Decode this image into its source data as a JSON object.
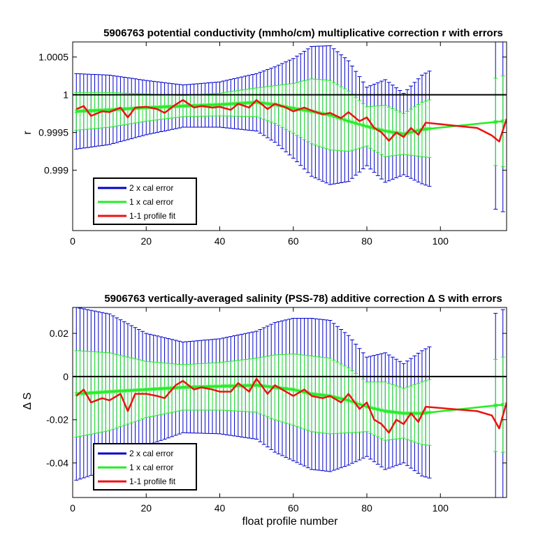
{
  "chart_data": [
    {
      "type": "line",
      "title": "5906763 potential conductivity (mmho/cm) multiplicative correction r with errors",
      "xlabel": "",
      "ylabel": "r",
      "xlim": [
        0,
        118
      ],
      "ylim": [
        0.9982,
        1.0007
      ],
      "xticks": [
        0,
        20,
        40,
        60,
        80,
        100
      ],
      "xtick_labels": [
        "0",
        "20",
        "40",
        "60",
        "80",
        "100"
      ],
      "yticks": [
        0.999,
        0.9995,
        1,
        1.0005
      ],
      "ytick_labels": [
        "0.999",
        "0.9995",
        "1",
        "1.0005"
      ],
      "reference_line": 1,
      "grid": false,
      "legend_position": "bottom-left",
      "legend": [
        "2 x cal error",
        "1 x cal error",
        "1-1 profile fit"
      ],
      "colors": {
        "two_x": "#0000cc",
        "one_x": "#22ee22",
        "fit": "#ee1111",
        "ref": "#000000"
      },
      "series": [
        {
          "name": "1 x cal error",
          "kind": "center_with_errorbars",
          "x": [
            1,
            10,
            20,
            30,
            40,
            50,
            55,
            60,
            65,
            70,
            75,
            80,
            85,
            90,
            95,
            117
          ],
          "y": [
            0.99978,
            0.9998,
            0.99983,
            0.99985,
            0.99987,
            0.9999,
            0.99987,
            0.99982,
            0.99978,
            0.99973,
            0.99965,
            0.99958,
            0.99952,
            0.99948,
            0.99954,
            0.99965
          ],
          "err": [
            0.00025,
            0.00023,
            0.00018,
            0.00014,
            0.00015,
            0.00019,
            0.00025,
            0.00033,
            0.00043,
            0.00046,
            0.0004,
            0.00026,
            0.00034,
            0.00027,
            0.00036,
            0.0006
          ]
        },
        {
          "name": "2 x cal error",
          "kind": "errorbar_envelope",
          "x": [
            1,
            10,
            20,
            30,
            40,
            50,
            55,
            60,
            65,
            70,
            75,
            80,
            85,
            90,
            95,
            117
          ],
          "y": [
            0.99978,
            0.9998,
            0.99983,
            0.99985,
            0.99987,
            0.9999,
            0.99987,
            0.99982,
            0.99978,
            0.99973,
            0.99965,
            0.99958,
            0.99952,
            0.99948,
            0.99954,
            0.99965
          ],
          "err": [
            0.0005,
            0.00046,
            0.00036,
            0.00028,
            0.0003,
            0.00038,
            0.0005,
            0.00066,
            0.00086,
            0.00092,
            0.0008,
            0.00052,
            0.00068,
            0.00054,
            0.00072,
            0.0012
          ]
        },
        {
          "name": "1-1 profile fit",
          "x": [
            1,
            3,
            5,
            8,
            10,
            13,
            15,
            17,
            20,
            23,
            25,
            28,
            30,
            33,
            35,
            38,
            40,
            43,
            45,
            48,
            50,
            53,
            55,
            58,
            60,
            63,
            65,
            68,
            70,
            73,
            75,
            78,
            80,
            82,
            84,
            86,
            88,
            90,
            92,
            94,
            96,
            110,
            114,
            116,
            118
          ],
          "y": [
            0.99981,
            0.99985,
            0.99972,
            0.99978,
            0.99977,
            0.99983,
            0.9997,
            0.99983,
            0.99984,
            0.99981,
            0.99976,
            0.99987,
            0.99993,
            0.99983,
            0.99985,
            0.99983,
            0.99984,
            0.9998,
            0.99988,
            0.99983,
            0.99993,
            0.99981,
            0.99988,
            0.99983,
            0.99978,
            0.99983,
            0.99979,
            0.99974,
            0.99976,
            0.99969,
            0.99977,
            0.99965,
            0.9997,
            0.99956,
            0.9995,
            0.99939,
            0.9995,
            0.99944,
            0.99956,
            0.99947,
            0.99963,
            0.99956,
            0.99946,
            0.99938,
            0.99968
          ]
        }
      ]
    },
    {
      "type": "line",
      "title": "5906763 vertically-averaged salinity (PSS-78) additive correction Δ S with errors",
      "xlabel": "float profile number",
      "ylabel": "Δ S",
      "xlim": [
        0,
        118
      ],
      "ylim": [
        -0.056,
        0.032
      ],
      "xticks": [
        0,
        20,
        40,
        60,
        80,
        100
      ],
      "xtick_labels": [
        "0",
        "20",
        "40",
        "60",
        "80",
        "100"
      ],
      "yticks": [
        -0.04,
        -0.02,
        0,
        0.02
      ],
      "ytick_labels": [
        "-0.04",
        "-0.02",
        "0",
        "0.02"
      ],
      "reference_line": 0,
      "grid": false,
      "legend_position": "bottom-left",
      "legend": [
        "2 x cal error",
        "1 x cal error",
        "1-1 profile fit"
      ],
      "colors": {
        "two_x": "#0000cc",
        "one_x": "#22ee22",
        "fit": "#ee1111",
        "ref": "#000000"
      },
      "series": [
        {
          "name": "1 x cal error",
          "kind": "center_with_errorbars",
          "x": [
            1,
            10,
            20,
            30,
            40,
            50,
            55,
            60,
            65,
            70,
            75,
            80,
            85,
            90,
            95,
            117
          ],
          "y": [
            -0.008,
            -0.007,
            -0.006,
            -0.005,
            -0.0045,
            -0.004,
            -0.005,
            -0.006,
            -0.008,
            -0.009,
            -0.011,
            -0.014,
            -0.016,
            -0.017,
            -0.017,
            -0.013
          ],
          "err": [
            0.02,
            0.018,
            0.013,
            0.0105,
            0.011,
            0.0125,
            0.015,
            0.0165,
            0.0175,
            0.0175,
            0.015,
            0.0115,
            0.0135,
            0.0115,
            0.0145,
            0.022
          ]
        },
        {
          "name": "2 x cal error",
          "kind": "errorbar_envelope",
          "x": [
            1,
            10,
            20,
            30,
            40,
            50,
            55,
            60,
            65,
            70,
            75,
            80,
            85,
            90,
            95,
            117
          ],
          "y": [
            -0.008,
            -0.007,
            -0.006,
            -0.005,
            -0.0045,
            -0.004,
            -0.005,
            -0.006,
            -0.008,
            -0.009,
            -0.011,
            -0.014,
            -0.016,
            -0.017,
            -0.017,
            -0.013
          ],
          "err": [
            0.04,
            0.036,
            0.026,
            0.021,
            0.022,
            0.025,
            0.03,
            0.033,
            0.035,
            0.035,
            0.03,
            0.023,
            0.027,
            0.023,
            0.029,
            0.044
          ]
        },
        {
          "name": "1-1 profile fit",
          "x": [
            1,
            3,
            5,
            8,
            10,
            13,
            15,
            17,
            20,
            23,
            25,
            28,
            30,
            33,
            35,
            38,
            40,
            43,
            45,
            48,
            50,
            53,
            55,
            58,
            60,
            63,
            65,
            68,
            70,
            73,
            75,
            78,
            80,
            82,
            84,
            86,
            88,
            90,
            92,
            94,
            96,
            110,
            114,
            116,
            118
          ],
          "y": [
            -0.009,
            -0.006,
            -0.012,
            -0.01,
            -0.011,
            -0.008,
            -0.016,
            -0.008,
            -0.008,
            -0.009,
            -0.01,
            -0.004,
            -0.002,
            -0.006,
            -0.005,
            -0.006,
            -0.007,
            -0.007,
            -0.003,
            -0.007,
            -0.001,
            -0.008,
            -0.004,
            -0.007,
            -0.009,
            -0.006,
            -0.009,
            -0.01,
            -0.009,
            -0.012,
            -0.008,
            -0.015,
            -0.012,
            -0.02,
            -0.022,
            -0.026,
            -0.02,
            -0.022,
            -0.017,
            -0.021,
            -0.014,
            -0.016,
            -0.018,
            -0.024,
            -0.012
          ]
        }
      ]
    }
  ]
}
